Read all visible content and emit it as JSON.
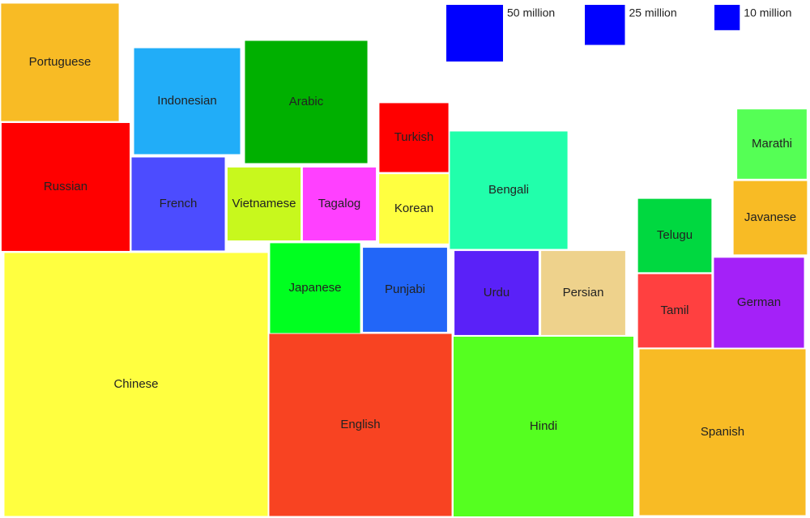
{
  "chart_data": {
    "type": "square",
    "categories": [
      "Chinese",
      "English",
      "Hindi",
      "Spanish",
      "Portuguese",
      "Russian",
      "Indonesian",
      "Arabic",
      "French",
      "Vietnamese",
      "Tagalog",
      "Turkish",
      "Korean",
      "Bengali",
      "Japanese",
      "Punjabi",
      "Urdu",
      "Persian",
      "Telugu",
      "Tamil",
      "German",
      "Javanese",
      "Marathi"
    ],
    "values": [
      1078,
      517,
      503,
      429,
      215,
      255,
      175,
      233,
      135,
      83,
      83,
      74,
      75,
      215,
      126,
      110,
      110,
      110,
      84,
      84,
      126,
      84,
      75
    ],
    "colors": [
      "#ffff40",
      "#f84322",
      "#55ff20",
      "#f8bb25",
      "#f8bb25",
      "#ff0000",
      "#21adf8",
      "#00b000",
      "#4c4cff",
      "#c8f81d",
      "#ff40ff",
      "#ff0000",
      "#ffff40",
      "#21ffab",
      "#00ff20",
      "#2266f8",
      "#5a21f8",
      "#eed28c",
      "#00d840",
      "#ff4040",
      "#a421f8",
      "#f8bb25",
      "#55ff55"
    ],
    "legend": [
      {
        "value": 50,
        "label": "50 million"
      },
      {
        "value": 25,
        "label": "25 million"
      },
      {
        "value": 10,
        "label": "10 million"
      }
    ],
    "legend_color": "#0000ff"
  }
}
